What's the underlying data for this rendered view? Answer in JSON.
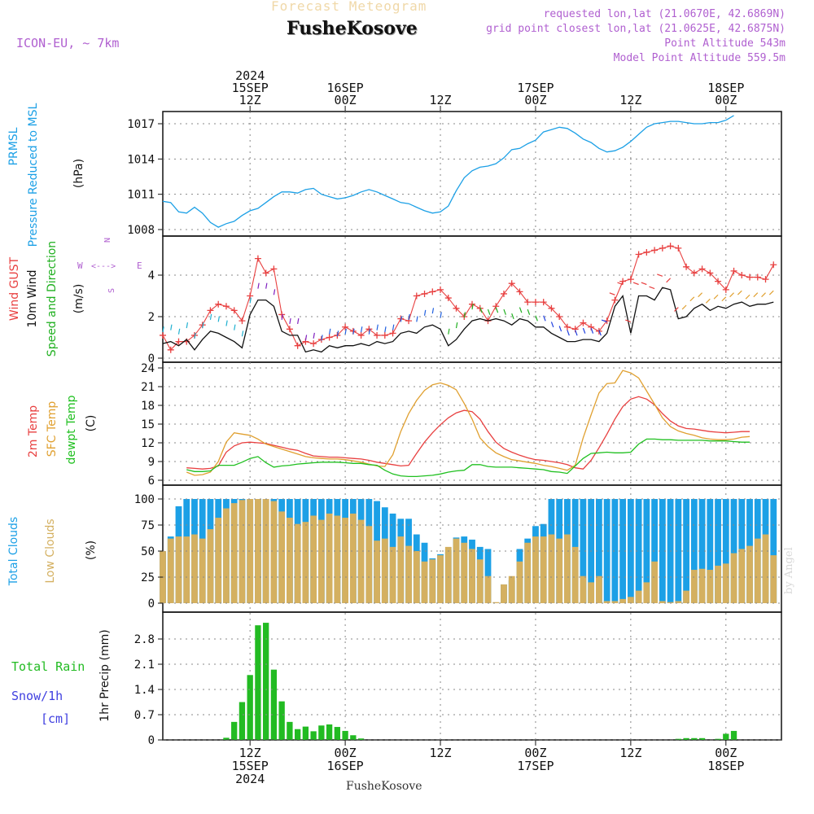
{
  "header": {
    "title": "Forecast Meteogram",
    "station": "FusheKosove",
    "model": "ICON-EU, ~ 7km",
    "requested": "requested lon,lat (21.0670E, 42.6869N)",
    "closest": "grid point closest lon,lat (21.0625E, 42.6875N)",
    "altitude": "Point Altitude 543m",
    "model_altitude": "Model Point Altitude 559.5m"
  },
  "footer": {
    "station": "FusheKosove",
    "credit": "by Angel"
  },
  "colors": {
    "prmsl": "#1ca0e6",
    "gust": "#e84040",
    "wind": "#111111",
    "dir": "#20b020",
    "t2m": "#e84040",
    "sfc": "#e0a030",
    "dew": "#20c020",
    "total_cloud": "#1ca0e6",
    "low_cloud": "#d4b060",
    "rain": "#22bb22",
    "label_purple": "#b060d0",
    "snow": "#4040e0"
  },
  "chart_data": {
    "type": "meteogram",
    "x_unit": "hours since 2024-09-15 00Z",
    "x_range": [
      1,
      79
    ],
    "top_time_labels": [
      {
        "hour": 12,
        "lines": [
          "2024",
          "15SEP",
          "12Z"
        ]
      },
      {
        "hour": 24,
        "lines": [
          "16SEP",
          "00Z"
        ]
      },
      {
        "hour": 36,
        "lines": [
          "12Z"
        ]
      },
      {
        "hour": 48,
        "lines": [
          "17SEP",
          "00Z"
        ]
      },
      {
        "hour": 60,
        "lines": [
          "12Z"
        ]
      },
      {
        "hour": 72,
        "lines": [
          "18SEP",
          "00Z"
        ]
      }
    ],
    "bottom_time_labels": [
      {
        "hour": 12,
        "lines": [
          "12Z",
          "15SEP",
          "2024"
        ]
      },
      {
        "hour": 24,
        "lines": [
          "00Z",
          "16SEP"
        ]
      },
      {
        "hour": 36,
        "lines": [
          "12Z"
        ]
      },
      {
        "hour": 48,
        "lines": [
          "00Z",
          "17SEP"
        ]
      },
      {
        "hour": 60,
        "lines": [
          "12Z"
        ]
      },
      {
        "hour": 72,
        "lines": [
          "00Z",
          "18SEP"
        ]
      }
    ],
    "panels": [
      {
        "id": "pressure",
        "labels": [
          "PRMSL",
          "Pressure Reduced to MSL",
          "(hPa)"
        ],
        "ylim": [
          1007.5,
          1018.5
        ],
        "ticks": [
          1008,
          1011,
          1014,
          1017
        ],
        "series": [
          {
            "name": "PRMSL",
            "color_key": "prmsl",
            "values": [
              1010.4,
              1010.3,
              1009.5,
              1009.4,
              1009.9,
              1009.4,
              1008.6,
              1008.2,
              1008.5,
              1008.7,
              1009.2,
              1009.6,
              1009.8,
              1010.3,
              1010.8,
              1011.2,
              1011.2,
              1011.1,
              1011.4,
              1011.5,
              1011.0,
              1010.8,
              1010.6,
              1010.7,
              1010.9,
              1011.2,
              1011.4,
              1011.2,
              1010.9,
              1010.6,
              1010.3,
              1010.2,
              1009.9,
              1009.6,
              1009.4,
              1009.5,
              1010.0,
              1011.3,
              1012.4,
              1013.0,
              1013.3,
              1013.4,
              1013.6,
              1014.1,
              1014.8,
              1014.9,
              1015.3,
              1015.6,
              1016.3,
              1016.5,
              1016.7,
              1016.6,
              1016.2,
              1015.7,
              1015.4,
              1014.9,
              1014.6,
              1014.7,
              1015.0,
              1015.5,
              1016.1,
              1016.7,
              1017.0,
              1017.1,
              1017.2,
              1017.2,
              1017.1,
              1017.0,
              1017.0,
              1017.1,
              1017.1,
              1017.3,
              1017.7
            ]
          }
        ]
      },
      {
        "id": "wind",
        "labels": [
          "Wind GUST",
          "10m Wind",
          "Speed and Direction",
          "(m/s)"
        ],
        "ylim": [
          0,
          6.2
        ],
        "ticks": [
          0,
          2,
          4
        ],
        "series": [
          {
            "name": "Wind GUST",
            "color_key": "gust",
            "values": [
              1.1,
              0.4,
              0.8,
              0.8,
              1.1,
              1.6,
              2.3,
              2.6,
              2.5,
              2.3,
              1.8,
              3.0,
              4.8,
              4.1,
              4.3,
              2.1,
              1.4,
              0.6,
              0.8,
              0.7,
              0.9,
              1.0,
              1.1,
              1.5,
              1.3,
              1.1,
              1.4,
              1.1,
              1.1,
              1.2,
              1.9,
              1.8,
              3.0,
              3.1,
              3.2,
              3.3,
              2.9,
              2.4,
              2.0,
              2.6,
              2.4,
              1.8,
              2.5,
              3.1,
              3.6,
              3.2,
              2.7,
              2.7,
              2.7,
              2.4,
              2.0,
              1.5,
              1.4,
              1.7,
              1.5,
              1.3,
              1.8,
              2.8,
              3.7,
              3.8,
              5.0,
              5.1,
              5.2,
              5.3,
              5.4,
              5.3,
              4.4,
              4.1,
              4.3,
              4.1,
              3.7,
              3.3,
              4.2,
              4.0,
              3.9,
              3.9,
              3.8,
              4.5
            ]
          },
          {
            "name": "10m Wind",
            "color_key": "wind",
            "values": [
              0.7,
              0.8,
              0.6,
              0.9,
              0.4,
              0.9,
              1.3,
              1.2,
              1.0,
              0.8,
              0.5,
              2.1,
              2.8,
              2.8,
              2.5,
              1.3,
              1.1,
              1.1,
              0.3,
              0.4,
              0.3,
              0.6,
              0.5,
              0.6,
              0.6,
              0.7,
              0.6,
              0.8,
              0.7,
              0.8,
              1.2,
              1.3,
              1.2,
              1.5,
              1.6,
              1.4,
              0.6,
              0.9,
              1.4,
              1.8,
              1.9,
              1.8,
              1.9,
              1.8,
              1.6,
              1.9,
              1.8,
              1.5,
              1.5,
              1.2,
              1.0,
              0.8,
              0.8,
              0.9,
              0.9,
              0.8,
              1.2,
              2.5,
              3.0,
              1.2,
              3.0,
              3.0,
              2.8,
              3.4,
              3.3,
              1.9,
              2.0,
              2.4,
              2.6,
              2.3,
              2.5,
              2.4,
              2.6,
              2.7,
              2.5,
              2.6,
              2.6,
              2.7
            ]
          }
        ],
        "compass": {
          "n": "N",
          "s": "S",
          "e": "E",
          "w": "W"
        }
      },
      {
        "id": "temperature",
        "labels": [
          "2m Temp",
          "SFC Temp",
          "dewpt Temp",
          "(C)"
        ],
        "ylim": [
          5.5,
          24.5
        ],
        "ticks": [
          6,
          9,
          12,
          15,
          18,
          21,
          24
        ],
        "series": [
          {
            "name": "2m Temp",
            "color_key": "t2m",
            "values": [
              8.0,
              7.9,
              7.8,
              7.9,
              8.3,
              10.5,
              11.5,
              12.0,
              12.1,
              12.0,
              11.9,
              11.6,
              11.3,
              11.0,
              10.8,
              10.3,
              9.9,
              9.8,
              9.7,
              9.7,
              9.6,
              9.5,
              9.4,
              9.2,
              8.9,
              8.7,
              8.5,
              8.3,
              8.4,
              10.3,
              12.1,
              13.6,
              14.9,
              16.0,
              16.8,
              17.2,
              17.0,
              15.8,
              13.8,
              12.1,
              11.1,
              10.5,
              10.0,
              9.6,
              9.3,
              9.2,
              9.0,
              8.8,
              8.5,
              8.0,
              7.8,
              9.2,
              11.2,
              13.4,
              15.8,
              17.8,
              19.0,
              19.4,
              19.0,
              18.1,
              16.7,
              15.5,
              14.7,
              14.3,
              14.2,
              14.0,
              13.8,
              13.7,
              13.6,
              13.7,
              13.8,
              13.8
            ]
          },
          {
            "name": "SFC Temp",
            "color_key": "sfc",
            "values": [
              7.3,
              6.8,
              6.9,
              7.3,
              9.0,
              12.1,
              13.6,
              13.4,
              13.2,
              12.6,
              11.8,
              11.4,
              11.0,
              10.6,
              10.2,
              9.8,
              9.6,
              9.5,
              9.4,
              9.4,
              9.3,
              9.1,
              8.9,
              8.6,
              8.3,
              8.2,
              10.1,
              13.8,
              16.7,
              18.8,
              20.4,
              21.3,
              21.6,
              21.2,
              20.5,
              18.3,
              15.8,
              12.8,
              11.4,
              10.4,
              9.8,
              9.3,
              9.1,
              8.9,
              8.7,
              8.4,
              8.2,
              7.9,
              7.6,
              8.4,
              12.8,
              16.5,
              20.0,
              21.5,
              21.6,
              23.6,
              23.2,
              22.4,
              20.3,
              18.2,
              16.0,
              14.6,
              13.9,
              13.5,
              13.2,
              12.8,
              12.6,
              12.5,
              12.5,
              12.6,
              12.9,
              13.0
            ]
          },
          {
            "name": "dewpt Temp",
            "color_key": "dew",
            "values": [
              7.7,
              7.4,
              7.4,
              7.5,
              8.4,
              8.4,
              8.4,
              8.9,
              9.5,
              9.8,
              8.8,
              8.1,
              8.3,
              8.4,
              8.6,
              8.7,
              8.8,
              8.9,
              8.9,
              8.9,
              8.8,
              8.7,
              8.7,
              8.5,
              8.4,
              7.6,
              7.0,
              6.7,
              6.6,
              6.6,
              6.7,
              6.8,
              7.0,
              7.3,
              7.5,
              7.6,
              8.5,
              8.5,
              8.2,
              8.1,
              8.1,
              8.1,
              8.0,
              7.9,
              7.8,
              7.7,
              7.4,
              7.3,
              7.1,
              8.3,
              9.5,
              10.3,
              10.4,
              10.5,
              10.4,
              10.4,
              10.5,
              11.8,
              12.6,
              12.6,
              12.5,
              12.5,
              12.4,
              12.4,
              12.4,
              12.4,
              12.3,
              12.3,
              12.3,
              12.2,
              12.1,
              12.1
            ]
          }
        ]
      },
      {
        "id": "clouds",
        "labels": [
          "Total Clouds",
          "Low Clouds",
          "(%)"
        ],
        "ylim": [
          -5,
          105
        ],
        "ticks": [
          0,
          25,
          50,
          75,
          100
        ],
        "series": [
          {
            "name": "Total Clouds",
            "color_key": "total_cloud",
            "values": [
              50,
              64,
              93,
              100,
              100,
              100,
              100,
              100,
              100,
              100,
              100,
              100,
              100,
              100,
              100,
              100,
              100,
              100,
              100,
              100,
              100,
              100,
              100,
              100,
              100,
              100,
              100,
              98,
              92,
              86,
              81,
              81,
              66,
              58,
              43,
              47,
              51,
              63,
              64,
              61,
              54,
              52,
              0,
              18,
              22,
              52,
              62,
              74,
              76,
              100,
              100,
              100,
              100,
              100,
              100,
              100,
              100,
              100,
              100,
              100,
              100,
              100,
              100,
              100,
              100,
              100,
              100,
              100,
              100,
              100,
              100,
              100,
              100,
              100,
              100,
              100,
              100,
              100
            ]
          },
          {
            "name": "Low Clouds",
            "color_key": "low_cloud",
            "values": [
              50,
              62,
              64,
              64,
              66,
              62,
              71,
              82,
              91,
              96,
              99,
              100,
              100,
              100,
              98,
              88,
              82,
              76,
              78,
              84,
              80,
              86,
              84,
              82,
              86,
              80,
              74,
              60,
              62,
              54,
              64,
              55,
              50,
              40,
              42,
              46,
              54,
              62,
              58,
              52,
              42,
              26,
              1,
              18,
              26,
              40,
              58,
              64,
              64,
              66,
              62,
              66,
              54,
              26,
              20,
              26,
              2,
              2,
              4,
              6,
              12,
              20,
              40,
              2,
              1,
              2,
              12,
              32,
              33,
              32,
              36,
              38,
              48,
              52,
              55,
              62,
              66,
              46
            ]
          }
        ]
      },
      {
        "id": "precip",
        "labels": [
          "Total Rain",
          "Snow/1h",
          "[cm]",
          "1hr Precip (mm)"
        ],
        "ylim": [
          0,
          3.3
        ],
        "ticks": [
          0,
          0.7,
          1.4,
          2.1,
          2.8
        ],
        "tick_labels": [
          "0",
          "0.7",
          "1.4",
          "2.1",
          "2.8"
        ],
        "series": [
          {
            "name": "Total Rain",
            "color_key": "rain",
            "values": [
              0,
              0,
              0,
              0,
              0,
              0,
              0,
              0,
              0.06,
              0.5,
              1.05,
              1.8,
              3.18,
              3.25,
              1.95,
              1.07,
              0.5,
              0.3,
              0.37,
              0.24,
              0.4,
              0.43,
              0.36,
              0.25,
              0.13,
              0.04,
              0,
              0,
              0,
              0,
              0,
              0,
              0,
              0,
              0,
              0,
              0,
              0,
              0,
              0,
              0,
              0,
              0,
              0,
              0,
              0,
              0,
              0,
              0,
              0,
              0,
              0,
              0,
              0,
              0,
              0,
              0,
              0,
              0,
              0,
              0,
              0,
              0,
              0,
              0,
              0.03,
              0.05,
              0.05,
              0.05,
              0,
              0.03,
              0.17,
              0.25,
              0,
              0,
              0,
              0,
              0
            ]
          }
        ]
      }
    ]
  }
}
